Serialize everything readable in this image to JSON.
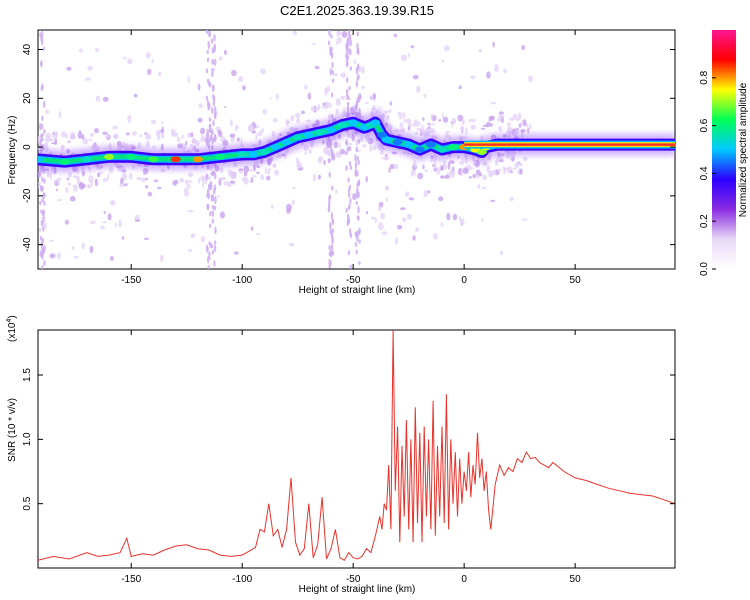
{
  "title": "C2E1.2025.363.19.39.R15",
  "colors": {
    "line": "#e8332b",
    "ridge": [
      "#3a00ff",
      "#00b8ff",
      "#00e27a",
      "#f2e600",
      "#ff2a2a"
    ]
  },
  "chart_data": [
    {
      "type": "heatmap",
      "title": "",
      "xlabel": "Height of straight line (km)",
      "ylabel": "Frequency (Hz)",
      "xlim": [
        -192,
        95
      ],
      "ylim": [
        -50,
        48
      ],
      "xticks": [
        -150,
        -100,
        -50,
        0,
        50
      ],
      "yticks": [
        -40,
        -20,
        0,
        20,
        40
      ],
      "colorbar": {
        "label": "Normalized spectral amplitude",
        "range": [
          0,
          1
        ],
        "ticks": [
          "0.0",
          "0.2",
          "0.4",
          "0.6",
          "0.8"
        ],
        "tick_values": [
          0,
          0.2,
          0.4,
          0.6,
          0.8
        ],
        "stops": [
          "#ffffff",
          "#e8d8f6",
          "#8a2be2",
          "#2a00ff",
          "#00c8ff",
          "#00ff55",
          "#ffff00",
          "#ff0000",
          "#ff1493"
        ]
      },
      "ridge": {
        "x": [
          -192,
          -180,
          -170,
          -160,
          -150,
          -140,
          -130,
          -120,
          -110,
          -100,
          -95,
          -90,
          -85,
          -80,
          -75,
          -70,
          -65,
          -60,
          -55,
          -50,
          -45,
          -42,
          -40,
          -37,
          -35,
          -30,
          -25,
          -20,
          -15,
          -10,
          -5,
          0,
          5,
          8,
          10,
          15,
          20,
          30,
          95
        ],
        "y": [
          -5,
          -6,
          -5,
          -4,
          -4,
          -5,
          -5,
          -5,
          -4,
          -3,
          -3,
          -2,
          0,
          2,
          4,
          5,
          6,
          7,
          9,
          10,
          8,
          9,
          10,
          5,
          3,
          2,
          1,
          -1,
          1,
          -1,
          0,
          0,
          -1,
          -2,
          0,
          1,
          1,
          1,
          1
        ]
      },
      "ridge_amplitude": [
        0.5,
        0.6,
        0.55,
        0.7,
        0.6,
        0.65,
        0.85,
        0.8,
        0.6,
        0.55,
        0.5,
        0.55,
        0.5,
        0.5,
        0.55,
        0.5,
        0.55,
        0.5,
        0.55,
        0.5,
        0.5,
        0.55,
        0.5,
        0.45,
        0.5,
        0.45,
        0.5,
        0.45,
        0.45,
        0.55,
        0.6,
        0.8,
        0.75,
        0.7,
        0.75,
        0.8,
        0.85,
        0.85,
        0.85
      ]
    },
    {
      "type": "line",
      "title": "",
      "xlabel": "Height of straight line (km)",
      "ylabel": "SNR (10 * v/v)",
      "y_multiplier": "(x10",
      "y_multiplier_exp": "4",
      "y_multiplier_close": ")",
      "xlim": [
        -192,
        95
      ],
      "ylim": [
        0,
        18500
      ],
      "xticks": [
        -150,
        -100,
        -50,
        0,
        50
      ],
      "yticks": [
        5000,
        10000,
        15000
      ],
      "ytick_labels": [
        "0.5",
        "1.0",
        "1.5"
      ],
      "series": [
        {
          "x": [
            -192,
            -185,
            -178,
            -170,
            -165,
            -160,
            -155,
            -152,
            -150,
            -145,
            -140,
            -135,
            -130,
            -125,
            -120,
            -115,
            -110,
            -105,
            -100,
            -97,
            -94,
            -92,
            -90,
            -88,
            -86,
            -84,
            -82,
            -80,
            -78,
            -76,
            -74,
            -72,
            -70,
            -68,
            -66,
            -64,
            -62,
            -60,
            -58,
            -56,
            -54,
            -52,
            -50,
            -48,
            -46,
            -44,
            -42,
            -40,
            -38,
            -37,
            -36,
            -35,
            -34,
            -33,
            -32,
            -31,
            -30,
            -29,
            -28,
            -27,
            -26,
            -25,
            -24,
            -23,
            -22,
            -21,
            -20,
            -19,
            -18,
            -17,
            -16,
            -15,
            -14,
            -13,
            -12,
            -11,
            -10,
            -9,
            -8,
            -7,
            -6,
            -5,
            -4,
            -3,
            -2,
            -1,
            0,
            1,
            2,
            3,
            4,
            5,
            6,
            7,
            8,
            9,
            10,
            11,
            12,
            14,
            16,
            18,
            20,
            22,
            24,
            26,
            28,
            30,
            32,
            34,
            36,
            38,
            40,
            45,
            50,
            55,
            60,
            65,
            70,
            75,
            80,
            85,
            90,
            95
          ],
          "y": [
            600,
            900,
            700,
            1200,
            900,
            1000,
            1200,
            2300,
            900,
            1100,
            1000,
            1400,
            1700,
            1800,
            1500,
            1400,
            1000,
            900,
            1000,
            1300,
            1600,
            3000,
            2800,
            5000,
            2500,
            3000,
            1600,
            3000,
            7000,
            2000,
            1000,
            1500,
            5000,
            800,
            1800,
            5500,
            700,
            1500,
            3000,
            800,
            600,
            1200,
            800,
            700,
            900,
            1500,
            1200,
            2500,
            4000,
            3000,
            5000,
            4500,
            8000,
            3000,
            18500,
            6000,
            11000,
            2000,
            9500,
            4000,
            11500,
            3000,
            10000,
            2000,
            12500,
            3500,
            10500,
            2000,
            11000,
            4000,
            10000,
            3000,
            13000,
            2500,
            9500,
            4000,
            11000,
            3500,
            13500,
            3000,
            10000,
            5000,
            9000,
            4000,
            8500,
            5000,
            7500,
            6000,
            9000,
            5500,
            8000,
            6500,
            10500,
            7000,
            8500,
            6000,
            7500,
            4500,
            3000,
            6500,
            8000,
            7200,
            7800,
            7500,
            8500,
            8200,
            9000,
            8500,
            8600,
            8200,
            8000,
            7800,
            8200,
            7500,
            7000,
            6800,
            6500,
            6200,
            6000,
            5800,
            5700,
            5600,
            5300,
            5000
          ]
        }
      ]
    }
  ]
}
